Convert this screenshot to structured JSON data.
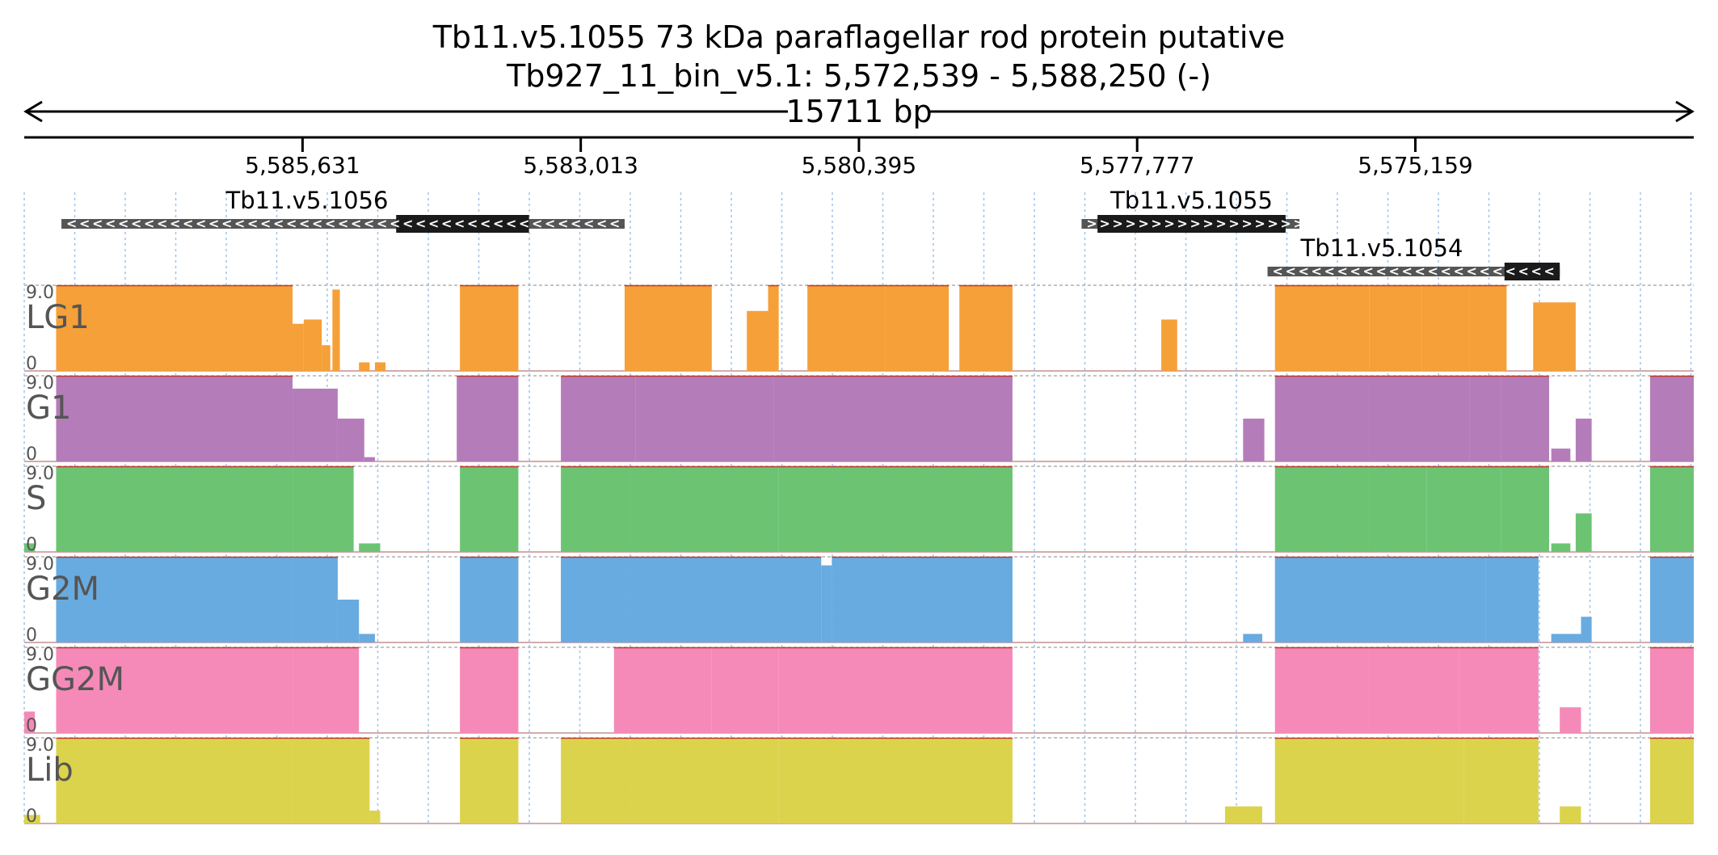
{
  "title_line1": "Tb11.v5.1055  73 kDa paraflagellar rod protein  putative",
  "title_line2": "Tb927_11_bin_v5.1: 5,572,539 - 5,588,250 (-)",
  "span_label": "15711 bp",
  "chart_data": {
    "type": "area",
    "region": {
      "chrom": "Tb927_11_bin_v5.1",
      "start": 5572539,
      "end": 5588250,
      "strand": "-"
    },
    "x_reversed": true,
    "grid": true,
    "ticks": [
      5585631,
      5583013,
      5580395,
      5577777,
      5575159
    ],
    "tick_labels": [
      "5,585,631",
      "5,583,013",
      "5,580,395",
      "5,577,777",
      "5,575,159"
    ],
    "genes": [
      {
        "name": "Tb11.v5.1056",
        "strand": "-",
        "start": 5582600,
        "end": 5587900,
        "cds_start": 5583500,
        "cds_end": 5584750
      },
      {
        "name": "Tb11.v5.1055",
        "strand": "+",
        "start": 5576250,
        "end": 5578300,
        "cds_start": 5576380,
        "cds_end": 5578150
      },
      {
        "name": "Tb11.v5.1054",
        "strand": "-",
        "start": 5573800,
        "end": 5576550,
        "cds_start": 5573800,
        "cds_end": 5574320
      }
    ],
    "y_max_label": "9.0",
    "y_min_label": "0",
    "series": [
      {
        "name": "LG1",
        "color": "#f5a038",
        "blocks": [
          [
            5587950,
            5585725,
            1
          ],
          [
            5585725,
            5585620,
            0.55
          ],
          [
            5585620,
            5585450,
            0.6
          ],
          [
            5585450,
            5585370,
            0.3
          ],
          [
            5585350,
            5585280,
            0.95
          ],
          [
            5585100,
            5585000,
            0.1
          ],
          [
            5584950,
            5584850,
            0.1
          ],
          [
            5584150,
            5583600,
            1
          ],
          [
            5582600,
            5581780,
            1
          ],
          [
            5581450,
            5581200,
            0.7
          ],
          [
            5581250,
            5581150,
            1
          ],
          [
            5580880,
            5580150,
            1
          ],
          [
            5580150,
            5579550,
            1
          ],
          [
            5579450,
            5578950,
            1
          ],
          [
            5577550,
            5577400,
            0.6
          ],
          [
            5576480,
            5575590,
            1
          ],
          [
            5575590,
            5575100,
            1
          ],
          [
            5575100,
            5574650,
            1
          ],
          [
            5574650,
            5574300,
            1
          ],
          [
            5574050,
            5573650,
            0.8
          ]
        ]
      },
      {
        "name": "G1",
        "color": "#b57cba",
        "blocks": [
          [
            5587950,
            5585725,
            1
          ],
          [
            5585725,
            5585300,
            0.85
          ],
          [
            5585300,
            5585050,
            0.5
          ],
          [
            5585050,
            5584950,
            0.05
          ],
          [
            5584180,
            5583600,
            1
          ],
          [
            5583200,
            5582500,
            1
          ],
          [
            5582500,
            5581200,
            1
          ],
          [
            5581200,
            5578950,
            1
          ],
          [
            5576780,
            5576580,
            0.5
          ],
          [
            5576480,
            5575600,
            1
          ],
          [
            5575600,
            5574650,
            1
          ],
          [
            5574650,
            5574350,
            1
          ],
          [
            5574350,
            5573900,
            1
          ],
          [
            5573880,
            5573700,
            0.15
          ],
          [
            5573650,
            5573500,
            0.5
          ],
          [
            5572950,
            5572539,
            1
          ]
        ]
      },
      {
        "name": "S",
        "color": "#6cc472",
        "blocks": [
          [
            5588250,
            5588150,
            0.1
          ],
          [
            5587950,
            5585725,
            1
          ],
          [
            5585725,
            5585150,
            1
          ],
          [
            5585100,
            5584900,
            0.1
          ],
          [
            5584150,
            5583600,
            1
          ],
          [
            5583200,
            5582550,
            1
          ],
          [
            5582550,
            5581150,
            1
          ],
          [
            5581150,
            5578950,
            1
          ],
          [
            5576480,
            5575600,
            1
          ],
          [
            5575600,
            5575050,
            1
          ],
          [
            5575050,
            5574350,
            1
          ],
          [
            5574350,
            5573900,
            1
          ],
          [
            5573880,
            5573700,
            0.1
          ],
          [
            5573650,
            5573500,
            0.45
          ],
          [
            5572950,
            5572539,
            1
          ]
        ]
      },
      {
        "name": "G2M",
        "color": "#68abe0",
        "blocks": [
          [
            5587950,
            5585725,
            1
          ],
          [
            5585725,
            5585300,
            1
          ],
          [
            5585300,
            5585100,
            0.5
          ],
          [
            5585100,
            5584950,
            0.1
          ],
          [
            5584150,
            5583600,
            1
          ],
          [
            5583200,
            5582550,
            1
          ],
          [
            5582550,
            5580750,
            1
          ],
          [
            5580750,
            5580650,
            0.9
          ],
          [
            5580650,
            5578950,
            1
          ],
          [
            5576780,
            5576600,
            0.1
          ],
          [
            5576480,
            5575600,
            1
          ],
          [
            5575600,
            5574500,
            1
          ],
          [
            5574500,
            5574000,
            1
          ],
          [
            5573880,
            5573600,
            0.1
          ],
          [
            5573600,
            5573500,
            0.3
          ],
          [
            5572950,
            5572539,
            1
          ]
        ]
      },
      {
        "name": "GG2M",
        "color": "#f58ab8",
        "blocks": [
          [
            5588250,
            5588150,
            0.25
          ],
          [
            5587950,
            5585725,
            1
          ],
          [
            5585725,
            5585100,
            1
          ],
          [
            5584150,
            5583600,
            1
          ],
          [
            5582700,
            5581780,
            1
          ],
          [
            5581780,
            5581150,
            1
          ],
          [
            5581150,
            5578950,
            1
          ],
          [
            5576480,
            5575600,
            1
          ],
          [
            5575600,
            5574750,
            1
          ],
          [
            5574750,
            5574000,
            1
          ],
          [
            5573800,
            5573600,
            0.3
          ],
          [
            5572950,
            5572539,
            1
          ]
        ]
      },
      {
        "name": "Lib",
        "color": "#dcd34d",
        "blocks": [
          [
            5588250,
            5588100,
            0.1
          ],
          [
            5587950,
            5585725,
            1
          ],
          [
            5585725,
            5585000,
            1
          ],
          [
            5585000,
            5584900,
            0.15
          ],
          [
            5584150,
            5583600,
            1
          ],
          [
            5583200,
            5582550,
            1
          ],
          [
            5582550,
            5581150,
            1
          ],
          [
            5581150,
            5578950,
            1
          ],
          [
            5576950,
            5576600,
            0.2
          ],
          [
            5576480,
            5575600,
            1
          ],
          [
            5575600,
            5574700,
            1
          ],
          [
            5574700,
            5574000,
            1
          ],
          [
            5573800,
            5573600,
            0.2
          ],
          [
            5572950,
            5572539,
            1
          ]
        ]
      }
    ]
  }
}
